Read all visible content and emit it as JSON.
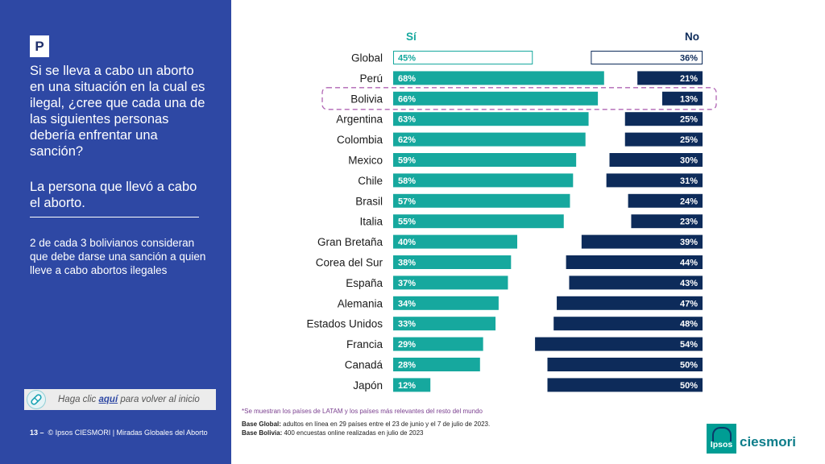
{
  "side": {
    "badge": "P",
    "question": "Si se lleva a cabo un aborto en una situación en la cual es ilegal, ¿cree que cada una de las siguientes personas debería enfrentar una sanción?",
    "subject": "La persona que llevó a cabo el aborto.",
    "insight": "2 de cada 3 bolivianos consideran que debe darse una sanción a quien lleve a cabo abortos ilegales",
    "back_prefix": "Haga clic ",
    "back_link": "aquí",
    "back_suffix": " para volver al inicio",
    "page_number": "13 –",
    "footer": "© Ipsos CIESMORI | Miradas Globales del Aborto"
  },
  "notes": {
    "asterisk": "*Se muestran los países de LATAM y los países más relevantes del resto del mundo",
    "base_global_label": "Base Global:",
    "base_global": " adultos en línea en 29 países entre el 23 de junio y el 7 de julio de 2023.",
    "base_bolivia_label": "Base Bolivia:",
    "base_bolivia": " 400 encuestas online realizadas en julio de 2023"
  },
  "logo": {
    "box": "Ipsos",
    "word": "ciesmori"
  },
  "colors": {
    "yes": "#16a89e",
    "no": "#0d2b5a",
    "yes_header": "#16a89e",
    "no_header": "#0d2b5a",
    "highlight": "#b065b4",
    "panel": "#2e48a4"
  },
  "chart_data": {
    "type": "bar",
    "orientation": "horizontal-diverging",
    "yes_label": "Sí",
    "no_label": "No",
    "highlight_category": "Bolivia",
    "categories": [
      "Global",
      "Perú",
      "Bolivia",
      "Argentina",
      "Colombia",
      "Mexico",
      "Chile",
      "Brasil",
      "Italia",
      "Gran Bretaña",
      "Corea del Sur",
      "España",
      "Alemania",
      "Estados Unidos",
      "Francia",
      "Canadá",
      "Japón"
    ],
    "series": [
      {
        "name": "Sí",
        "values": [
          45,
          68,
          66,
          63,
          62,
          59,
          58,
          57,
          55,
          40,
          38,
          37,
          34,
          33,
          29,
          28,
          12
        ]
      },
      {
        "name": "No",
        "values": [
          36,
          21,
          13,
          25,
          25,
          30,
          31,
          24,
          23,
          39,
          44,
          43,
          47,
          48,
          54,
          50,
          50
        ]
      }
    ],
    "value_suffix": "%"
  }
}
